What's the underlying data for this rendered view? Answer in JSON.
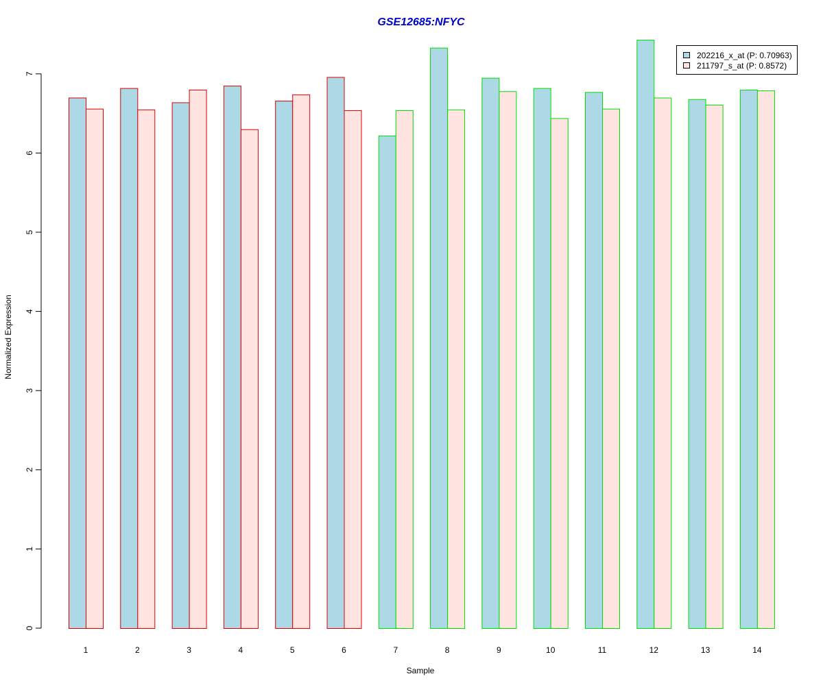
{
  "chart_data": {
    "type": "bar",
    "title": "GSE12685:NFYC",
    "xlabel": "Sample",
    "ylabel": "Normalized Expression",
    "ylim": [
      0,
      7
    ],
    "yticks": [
      0,
      1,
      2,
      3,
      4,
      5,
      6,
      7
    ],
    "categories": [
      "1",
      "2",
      "3",
      "4",
      "5",
      "6",
      "7",
      "8",
      "9",
      "10",
      "11",
      "12",
      "13",
      "14"
    ],
    "group_border_colors": [
      "#dd0000",
      "#dd0000",
      "#dd0000",
      "#dd0000",
      "#dd0000",
      "#dd0000",
      "#00dd00",
      "#00dd00",
      "#00dd00",
      "#00dd00",
      "#00dd00",
      "#00dd00",
      "#00dd00",
      "#00dd00"
    ],
    "series": [
      {
        "name": "202216_x_at (P: 0.70963)",
        "fill": "#add8e6",
        "values": [
          6.7,
          6.82,
          6.64,
          6.85,
          6.66,
          6.96,
          6.22,
          7.33,
          6.95,
          6.82,
          6.77,
          7.43,
          6.68,
          6.8
        ]
      },
      {
        "name": "211797_s_at (P: 0.8572)",
        "fill": "#ffe4e1",
        "values": [
          6.56,
          6.55,
          6.8,
          6.3,
          6.74,
          6.54,
          6.54,
          6.55,
          6.78,
          6.44,
          6.56,
          6.7,
          6.61,
          6.79
        ]
      }
    ],
    "legend_position": "top-right",
    "title_color": "#0000cc",
    "grid": false
  }
}
